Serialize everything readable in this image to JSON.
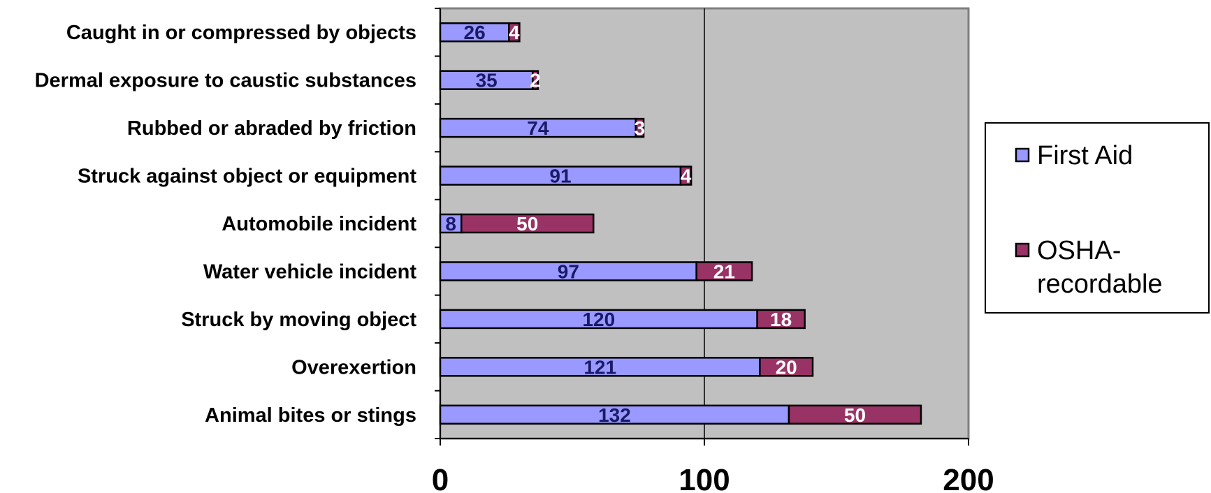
{
  "chart_data": {
    "type": "bar",
    "orientation": "horizontal",
    "stacked": true,
    "categories": [
      "Caught in or compressed by objects",
      "Dermal exposure to caustic substances",
      "Rubbed or abraded by friction",
      "Struck against object or equipment",
      "Automobile incident",
      "Water vehicle incident",
      "Struck by moving object",
      "Overexertion",
      "Animal bites or stings"
    ],
    "series": [
      {
        "name": "First Aid",
        "color": "#9999ff",
        "label_color": "#1a1a66",
        "values": [
          26,
          35,
          74,
          91,
          8,
          97,
          120,
          121,
          132
        ]
      },
      {
        "name": "OSHA-recordable",
        "color": "#993366",
        "label_color": "#ffffff",
        "values": [
          4,
          2,
          3,
          4,
          50,
          21,
          18,
          20,
          50
        ]
      }
    ],
    "xlim": [
      0,
      200
    ],
    "xticks": [
      "0",
      "100",
      "200"
    ],
    "plot_background": "#c0c0c0",
    "grid": "vertical",
    "legend": {
      "position": "right",
      "items": [
        "First Aid",
        "OSHA-recordable"
      ]
    }
  }
}
